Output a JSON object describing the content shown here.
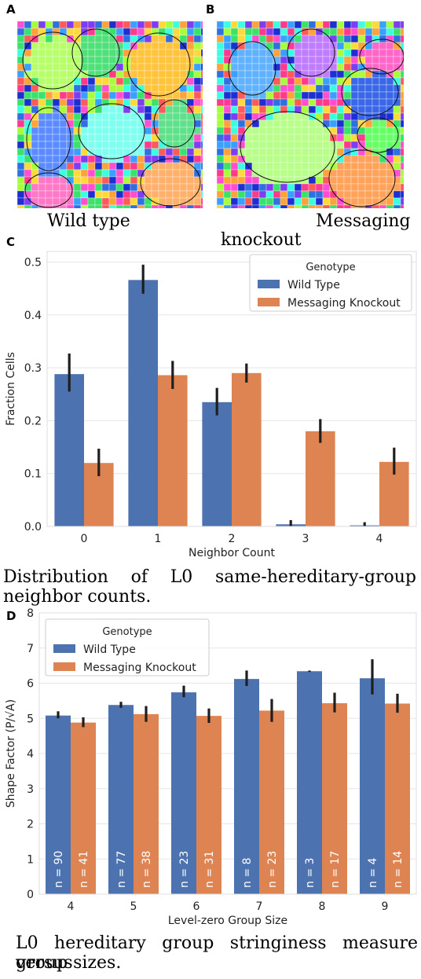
{
  "panels": {
    "a": {
      "letter": "A",
      "caption": "Wild type"
    },
    "b": {
      "letter": "B",
      "caption_line1": "Messaging",
      "caption_line2": "knockout"
    },
    "c": {
      "letter": "C",
      "caption_line1": "Distribution of L0 same-hereditary-group",
      "caption_line2": "neighbor counts."
    },
    "d": {
      "letter": "D",
      "caption_line1": "L0 hereditary group stringiness measure versus",
      "caption_line2": "group sizes."
    }
  },
  "colors": {
    "wild_type": "#4c72b0",
    "knockout": "#dd8452",
    "error_bar": "#1f1f1f",
    "plot_bg": "#ffffff",
    "grid": "#e5e5e5"
  },
  "chart_data": [
    {
      "id": "C",
      "type": "bar",
      "xlabel": "Neighbor Count",
      "ylabel": "Fraction Cells",
      "categories": [
        "0",
        "1",
        "2",
        "3",
        "4"
      ],
      "ylim": [
        0,
        0.52
      ],
      "yticks": [
        0.0,
        0.1,
        0.2,
        0.3,
        0.4,
        0.5
      ],
      "ytick_labels": [
        "0.0",
        "0.1",
        "0.2",
        "0.3",
        "0.4",
        "0.5"
      ],
      "legend": {
        "title": "Genotype",
        "placement": "top-right"
      },
      "series": [
        {
          "name": "Wild Type",
          "values": [
            0.288,
            0.466,
            0.235,
            0.004,
            0.002
          ],
          "err_low": [
            0.255,
            0.44,
            0.21,
            0.0,
            0.0
          ],
          "err_high": [
            0.327,
            0.495,
            0.262,
            0.012,
            0.008
          ]
        },
        {
          "name": "Messaging Knockout",
          "values": [
            0.12,
            0.286,
            0.29,
            0.18,
            0.122
          ],
          "err_low": [
            0.095,
            0.26,
            0.272,
            0.158,
            0.098
          ],
          "err_high": [
            0.147,
            0.313,
            0.308,
            0.203,
            0.149
          ]
        }
      ]
    },
    {
      "id": "D",
      "type": "bar",
      "xlabel": "Level-zero Group Size",
      "ylabel": "Shape Factor (P/√A)",
      "categories": [
        "4",
        "5",
        "6",
        "7",
        "8",
        "9"
      ],
      "ylim": [
        0,
        8
      ],
      "yticks": [
        0,
        1,
        2,
        3,
        4,
        5,
        6,
        7,
        8
      ],
      "ytick_labels": [
        "0",
        "1",
        "2",
        "3",
        "4",
        "5",
        "6",
        "7",
        "8"
      ],
      "legend": {
        "title": "Genotype",
        "placement": "top-left"
      },
      "series": [
        {
          "name": "Wild Type",
          "values": [
            5.08,
            5.38,
            5.74,
            6.12,
            6.34,
            6.14
          ],
          "err_low": [
            5.0,
            5.3,
            5.6,
            5.92,
            6.32,
            5.68
          ],
          "err_high": [
            5.2,
            5.47,
            5.93,
            6.36,
            6.36,
            6.68
          ],
          "n_labels": [
            "n = 90",
            "n = 77",
            "n = 23",
            "n = 8",
            "n = 3",
            "n = 4"
          ]
        },
        {
          "name": "Messaging Knockout",
          "values": [
            4.88,
            5.12,
            5.07,
            5.22,
            5.43,
            5.42
          ],
          "err_low": [
            4.75,
            4.9,
            4.87,
            4.9,
            5.17,
            5.16
          ],
          "err_high": [
            5.03,
            5.35,
            5.28,
            5.55,
            5.73,
            5.7
          ],
          "n_labels": [
            "n = 41",
            "n = 38",
            "n = 31",
            "n = 23",
            "n = 17",
            "n = 14"
          ]
        }
      ]
    }
  ]
}
